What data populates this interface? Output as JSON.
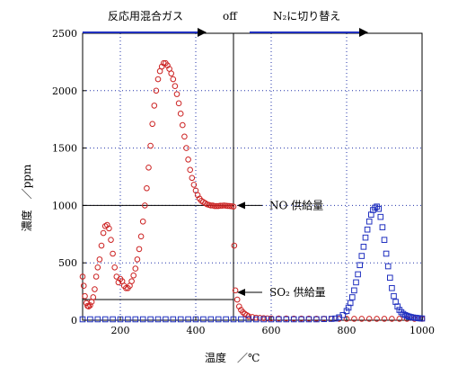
{
  "chart_data": {
    "type": "scatter",
    "xlabel": "温度　／℃",
    "ylabel": "濃度　／ppm",
    "xlim": [
      100,
      1000
    ],
    "ylim": [
      0,
      2500
    ],
    "x_ticks": [
      200,
      400,
      600,
      800,
      1000
    ],
    "y_ticks": [
      0,
      500,
      1000,
      1500,
      2000,
      2500
    ],
    "grid": true,
    "top_labels": {
      "left": "反応用混合ガス",
      "middle": "off",
      "right": "N₂に切り替え"
    },
    "phase_switch_x": 500,
    "annotations": [
      {
        "text": "NO 供給量",
        "x": 500,
        "y": 1000
      },
      {
        "text": "SO₂ 供給量",
        "x": 500,
        "y": 180
      }
    ],
    "reference_lines": [
      {
        "name": "NO supply",
        "y": 1000,
        "x_range": [
          100,
          500
        ]
      },
      {
        "name": "SO2 supply",
        "y": 180,
        "x_range": [
          100,
          500
        ]
      }
    ],
    "series": [
      {
        "marker": "circle",
        "color": "#cc2222",
        "x": [
          100,
          103,
          106,
          110,
          113,
          116,
          120,
          124,
          128,
          132,
          136,
          140,
          145,
          150,
          155,
          160,
          165,
          170,
          175,
          180,
          185,
          190,
          195,
          200,
          205,
          210,
          215,
          220,
          225,
          230,
          235,
          240,
          245,
          250,
          255,
          260,
          265,
          270,
          275,
          280,
          285,
          290,
          295,
          300,
          305,
          310,
          315,
          320,
          325,
          330,
          335,
          340,
          345,
          350,
          355,
          360,
          365,
          370,
          375,
          380,
          385,
          390,
          395,
          400,
          405,
          410,
          415,
          420,
          425,
          430,
          435,
          440,
          445,
          450,
          455,
          460,
          465,
          470,
          475,
          480,
          485,
          490,
          495,
          500,
          502,
          505,
          510,
          515,
          520,
          525,
          530,
          535,
          540,
          550,
          560,
          570,
          580,
          590,
          600,
          620,
          640,
          660,
          680,
          700,
          720,
          740,
          760,
          780,
          800,
          820,
          840,
          860,
          880,
          900,
          920,
          940,
          960,
          980,
          1000
        ],
        "y": [
          380,
          300,
          210,
          150,
          125,
          120,
          130,
          160,
          200,
          270,
          380,
          460,
          530,
          650,
          760,
          820,
          830,
          800,
          700,
          580,
          460,
          380,
          330,
          360,
          340,
          300,
          280,
          280,
          300,
          340,
          390,
          450,
          530,
          620,
          730,
          860,
          1000,
          1150,
          1330,
          1520,
          1710,
          1870,
          2000,
          2100,
          2170,
          2210,
          2240,
          2240,
          2220,
          2190,
          2150,
          2100,
          2040,
          1970,
          1890,
          1800,
          1700,
          1600,
          1500,
          1400,
          1310,
          1240,
          1180,
          1130,
          1090,
          1060,
          1040,
          1030,
          1020,
          1010,
          1005,
          1000,
          1000,
          995,
          995,
          995,
          998,
          998,
          1000,
          998,
          996,
          995,
          993,
          990,
          650,
          260,
          180,
          120,
          90,
          70,
          55,
          45,
          35,
          28,
          22,
          20,
          18,
          16,
          16,
          15,
          15,
          14,
          14,
          14,
          13,
          13,
          12,
          12,
          12,
          12,
          12,
          12,
          12,
          12,
          12,
          12,
          12,
          12,
          12
        ]
      },
      {
        "marker": "square",
        "color": "#1f2fbf",
        "x": [
          100,
          120,
          140,
          160,
          180,
          200,
          220,
          240,
          260,
          280,
          300,
          320,
          340,
          360,
          380,
          400,
          420,
          440,
          460,
          480,
          500,
          520,
          540,
          560,
          580,
          600,
          620,
          640,
          660,
          680,
          700,
          720,
          740,
          760,
          770,
          780,
          790,
          800,
          805,
          810,
          815,
          820,
          825,
          830,
          835,
          840,
          845,
          850,
          855,
          860,
          865,
          870,
          875,
          880,
          885,
          890,
          895,
          900,
          905,
          910,
          915,
          920,
          925,
          930,
          935,
          940,
          945,
          950,
          955,
          960,
          965,
          970,
          975,
          980,
          985,
          990,
          995,
          1000
        ],
        "y": [
          8,
          8,
          8,
          8,
          8,
          8,
          8,
          8,
          8,
          8,
          8,
          8,
          8,
          8,
          8,
          8,
          8,
          8,
          8,
          8,
          8,
          8,
          8,
          8,
          8,
          8,
          8,
          8,
          8,
          8,
          8,
          8,
          10,
          12,
          15,
          25,
          45,
          80,
          110,
          150,
          200,
          260,
          330,
          400,
          480,
          560,
          640,
          720,
          790,
          860,
          920,
          960,
          980,
          990,
          970,
          900,
          810,
          700,
          580,
          470,
          370,
          280,
          210,
          160,
          120,
          90,
          70,
          55,
          45,
          38,
          32,
          28,
          24,
          22,
          20,
          18,
          16,
          15
        ]
      }
    ]
  }
}
